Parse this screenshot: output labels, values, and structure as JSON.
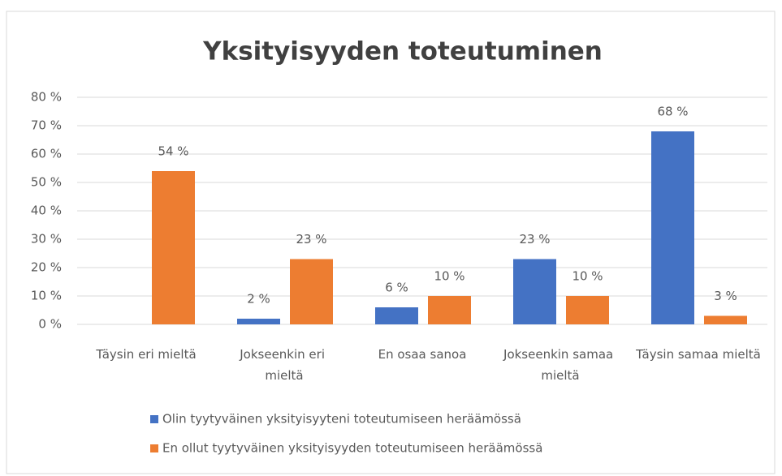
{
  "chart_data": {
    "type": "bar",
    "title": "Yksityisyyden toteutuminen",
    "categories": [
      "Täysin eri mieltä",
      "Jokseenkin eri mieltä",
      "En osaa sanoa",
      "Jokseenkin samaa mieltä",
      "Täysin samaa mieltä"
    ],
    "series": [
      {
        "name": "Olin tyytyväinen yksityisyyteni toteutumiseen heräämössä",
        "color": "#4472c4",
        "values": [
          null,
          2,
          6,
          23,
          68
        ],
        "value_labels": [
          null,
          "2 %",
          "6 %",
          "23 %",
          "68 %"
        ]
      },
      {
        "name": "En ollut tyytyväinen yksityisyyden toteutumiseen heräämössä",
        "color": "#ed7d31",
        "values": [
          54,
          23,
          10,
          10,
          3
        ],
        "value_labels": [
          "54 %",
          "23 %",
          "10 %",
          "10 %",
          "3 %"
        ]
      }
    ],
    "ylim": [
      0,
      80
    ],
    "yticks": [
      {
        "value": 0,
        "label": "0 %"
      },
      {
        "value": 10,
        "label": "10 %"
      },
      {
        "value": 20,
        "label": "20 %"
      },
      {
        "value": 30,
        "label": "30 %"
      },
      {
        "value": 40,
        "label": "40 %"
      },
      {
        "value": 50,
        "label": "50 %"
      },
      {
        "value": 60,
        "label": "60 %"
      },
      {
        "value": 70,
        "label": "70 %"
      },
      {
        "value": 80,
        "label": "80 %"
      }
    ],
    "grid": true,
    "legend": "bottom"
  }
}
